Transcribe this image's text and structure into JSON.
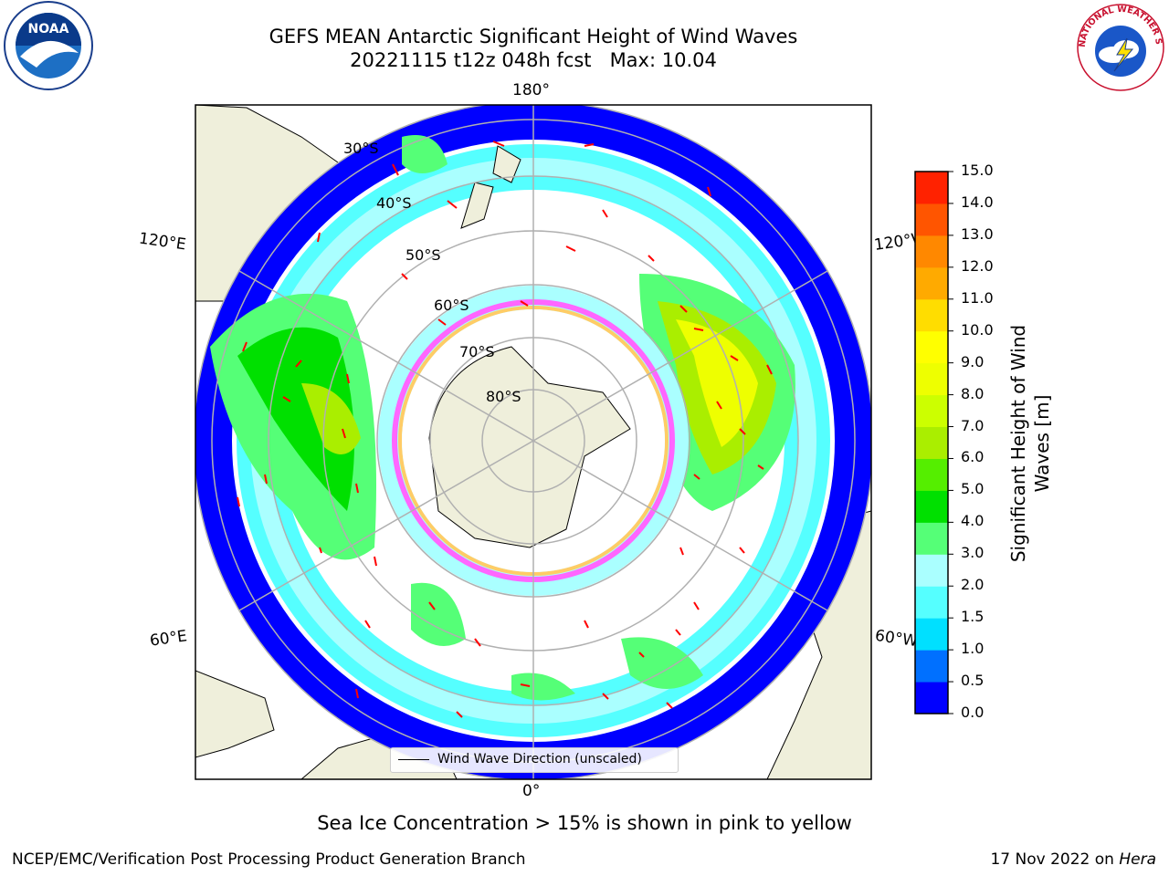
{
  "title": "GEFS MEAN Antarctic Significant Height of Wind Waves",
  "subtitle": "20221115 t12z 048h fcst   Max: 10.04",
  "logos": {
    "left": {
      "name": "noaa-logo",
      "text": "NOAA"
    },
    "right": {
      "name": "nws-logo",
      "text": "NATIONAL WEATHER SERVICE"
    }
  },
  "map": {
    "projection": "south-polar-stereographic",
    "longitude_labels": {
      "top": "180°",
      "bottom": "0°",
      "left_upper": "120°E",
      "left_lower": "60°E",
      "right_upper": "120°W",
      "right_lower": "60°W"
    },
    "latitude_labels": [
      "30°S",
      "40°S",
      "50°S",
      "60°S",
      "70°S",
      "80°S"
    ],
    "legend": "Wind Wave Direction (unscaled)",
    "colors": {
      "land": "#efefdb",
      "ocean_low": "#ffffff",
      "arrow": "#ff0000",
      "grid": "#b0b0b0"
    }
  },
  "colorbar": {
    "label": "Significant Height of Wind Waves [m]",
    "label_line1": "Significant Height of Wind",
    "label_line2": "Waves [m]",
    "ticks": [
      "0.0",
      "0.5",
      "1.0",
      "1.5",
      "2.0",
      "3.0",
      "4.0",
      "5.0",
      "6.0",
      "7.0",
      "8.0",
      "9.0",
      "10.0",
      "11.0",
      "12.0",
      "13.0",
      "14.0",
      "15.0"
    ],
    "colors": [
      "#0000ff",
      "#0070ff",
      "#00e0ff",
      "#55ffff",
      "#aaffff",
      "#55ff77",
      "#00e000",
      "#55ee00",
      "#aaee00",
      "#ccff00",
      "#eeff00",
      "#ffff00",
      "#ffdd00",
      "#ffaa00",
      "#ff8800",
      "#ff5500",
      "#ff2200"
    ]
  },
  "note": "Sea Ice Concentration > 15% is shown in pink to yellow",
  "footer": {
    "credit": "NCEP/EMC/Verification Post Processing Product Generation Branch",
    "date_prefix": "17 Nov 2022 on ",
    "machine": "Hera"
  }
}
